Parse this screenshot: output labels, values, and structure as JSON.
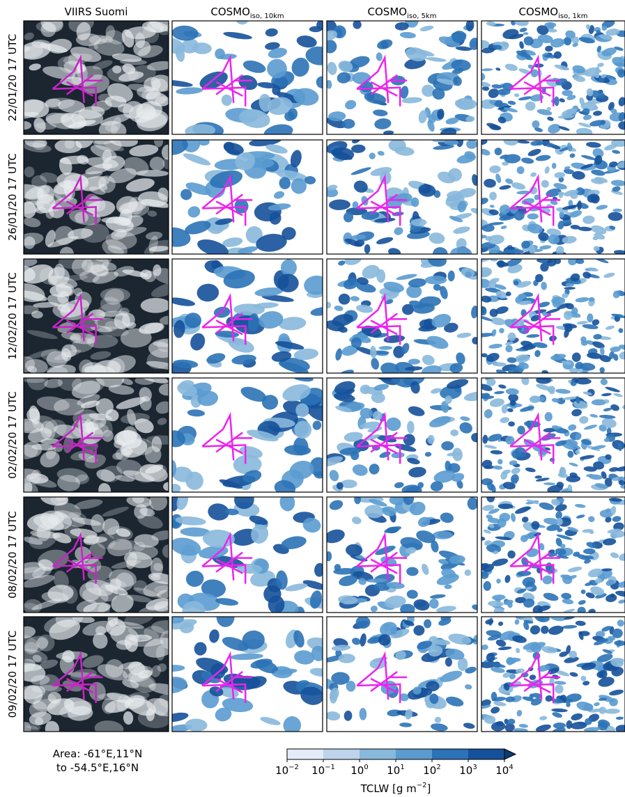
{
  "columns": [
    {
      "label": "VIIRS Suomi"
    },
    {
      "label": "COSMO",
      "subscript": "iso, 10km"
    },
    {
      "label": "COSMO",
      "subscript": "iso, 5km"
    },
    {
      "label": "COSMO",
      "subscript": "iso, 1km"
    }
  ],
  "rows": [
    "22/01/20 17 UTC",
    "26/01/20 17 UTC",
    "12/02/20 17 UTC",
    "02/02/20 17 UTC",
    "08/02/20 17 UTC",
    "09/02/20 17 UTC"
  ],
  "area_note": [
    "Area: -61°E,11°N",
    "to -54.5°E,16°N"
  ],
  "colorbar": {
    "label": "TCLW [g m",
    "label_exponent": "−2",
    "label_end": "]",
    "colors": [
      "#e3ecf8",
      "#bed4ec",
      "#88b8dc",
      "#5a9bd0",
      "#2b72b6",
      "#15519a",
      "#0d3a72"
    ],
    "ticks": [
      {
        "base": "10",
        "exponent": "−2"
      },
      {
        "base": "10",
        "exponent": "−1"
      },
      {
        "base": "10",
        "exponent": "0"
      },
      {
        "base": "10",
        "exponent": "1"
      },
      {
        "base": "10",
        "exponent": "2"
      },
      {
        "base": "10",
        "exponent": "3"
      },
      {
        "base": "10",
        "exponent": "4"
      }
    ]
  }
}
